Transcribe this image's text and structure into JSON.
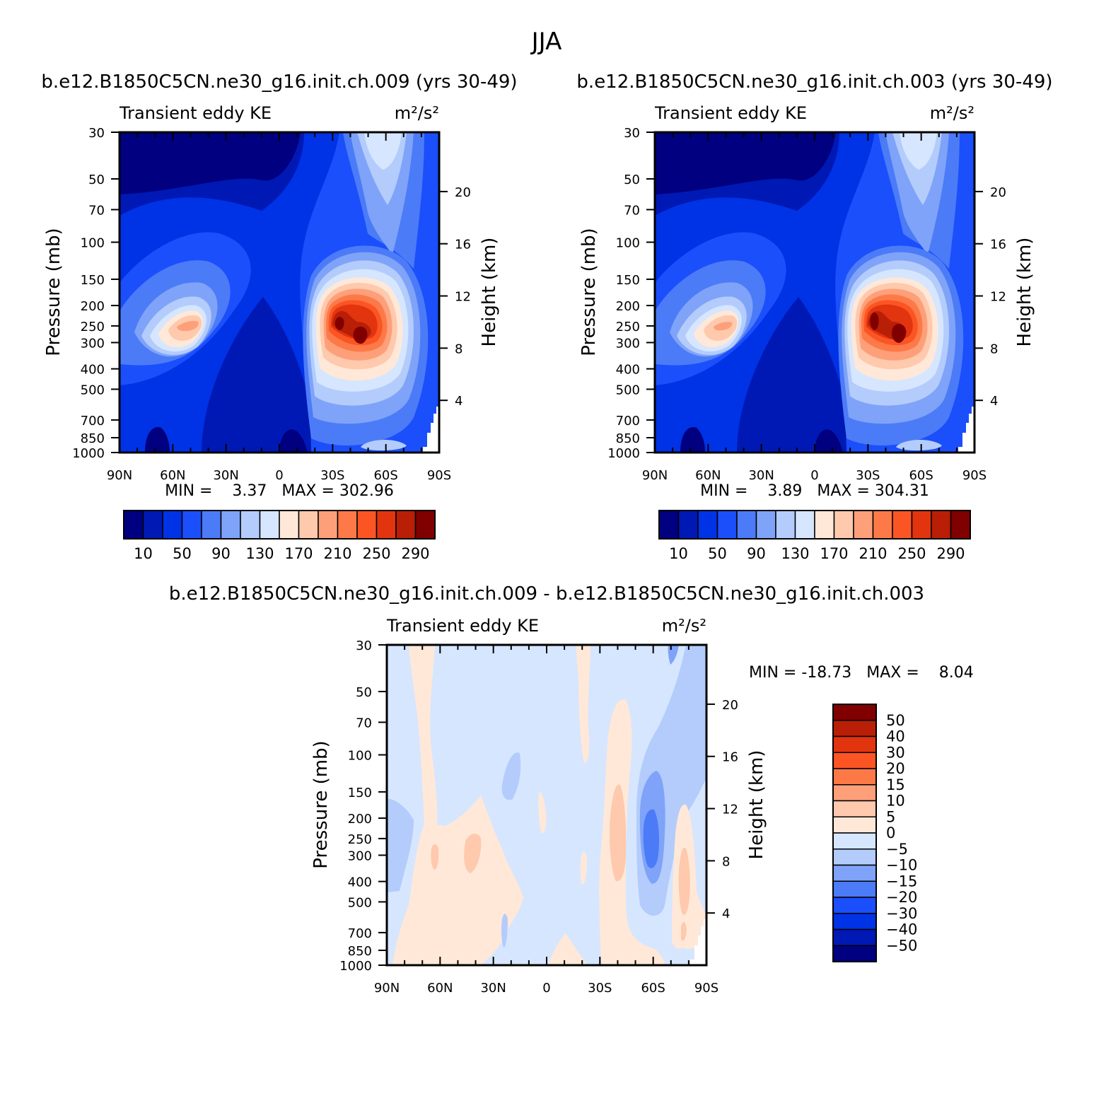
{
  "figure": {
    "title": "JJA"
  },
  "colors": {
    "ke_fill": [
      "#000080",
      "#0019b4",
      "#0032e6",
      "#1b4ffc",
      "#4c7bf8",
      "#7fa3f8",
      "#b3ccfc",
      "#d6e6ff",
      "#ffe8d8",
      "#fec9ad",
      "#fda07a",
      "#fd7a48",
      "#fb5524",
      "#e2340e",
      "#b81f06",
      "#800000"
    ],
    "diff_fill": [
      "#000080",
      "#0019b4",
      "#0032e6",
      "#1b4ffc",
      "#4c7bf8",
      "#7fa3f8",
      "#b3ccfc",
      "#d6e6ff",
      "#ffe8d8",
      "#fec9ad",
      "#fda07a",
      "#fd7a48",
      "#fb5524",
      "#e2340e",
      "#b81f06",
      "#800000"
    ]
  },
  "chart_data": [
    {
      "type": "heatmap",
      "title": "b.e12.B1850C5CN.ne30_g16.init.ch.009 (yrs 30-49)",
      "left_label": "Transient eddy KE",
      "units": "m²/s²",
      "ylabel": "Pressure (mb)",
      "y2label": "Height (km)",
      "x_ticks": [
        "90N",
        "60N",
        "30N",
        "0",
        "30S",
        "60S",
        "90S"
      ],
      "y_ticks": [
        30,
        50,
        70,
        100,
        150,
        200,
        250,
        300,
        400,
        500,
        700,
        850,
        1000
      ],
      "y2_ticks": [
        20,
        16,
        12,
        8,
        4
      ],
      "stats": "MIN =    3.37   MAX = 302.96",
      "colorbar_labels": [
        "10",
        "50",
        "90",
        "130",
        "170",
        "210",
        "250",
        "290"
      ],
      "ylim": [
        1000,
        30
      ],
      "xlim": [
        "90N",
        "90S"
      ],
      "features": [
        {
          "lat": 48,
          "p": 250,
          "value": 190
        },
        {
          "lat": -45,
          "p": 280,
          "value": 302.96
        },
        {
          "lat": -25,
          "p": 260,
          "value": 270
        },
        {
          "lat": -55,
          "p": 30,
          "value": 150
        }
      ]
    },
    {
      "type": "heatmap",
      "title": "b.e12.B1850C5CN.ne30_g16.init.ch.003 (yrs 30-49)",
      "left_label": "Transient eddy KE",
      "units": "m²/s²",
      "ylabel": "Pressure (mb)",
      "y2label": "Height (km)",
      "x_ticks": [
        "90N",
        "60N",
        "30N",
        "0",
        "30S",
        "60S",
        "90S"
      ],
      "y_ticks": [
        30,
        50,
        70,
        100,
        150,
        200,
        250,
        300,
        400,
        500,
        700,
        850,
        1000
      ],
      "y2_ticks": [
        20,
        16,
        12,
        8,
        4
      ],
      "stats": "MIN =    3.89   MAX = 304.31",
      "colorbar_labels": [
        "10",
        "50",
        "90",
        "130",
        "170",
        "210",
        "250",
        "290"
      ],
      "ylim": [
        1000,
        30
      ],
      "xlim": [
        "90N",
        "90S"
      ],
      "features": [
        {
          "lat": 48,
          "p": 250,
          "value": 185
        },
        {
          "lat": -45,
          "p": 280,
          "value": 304.31
        },
        {
          "lat": -27,
          "p": 250,
          "value": 285
        },
        {
          "lat": -55,
          "p": 30,
          "value": 150
        }
      ]
    },
    {
      "type": "heatmap",
      "title": "b.e12.B1850C5CN.ne30_g16.init.ch.009 - b.e12.B1850C5CN.ne30_g16.init.ch.003",
      "left_label": "Transient eddy KE",
      "units": "m²/s²",
      "ylabel": "Pressure (mb)",
      "y2label": "Height (km)",
      "x_ticks": [
        "90N",
        "60N",
        "30N",
        "0",
        "30S",
        "60S",
        "90S"
      ],
      "y_ticks": [
        30,
        50,
        70,
        100,
        150,
        200,
        250,
        300,
        400,
        500,
        700,
        850,
        1000
      ],
      "y2_ticks": [
        20,
        16,
        12,
        8,
        4
      ],
      "stats": "MIN = -18.73   MAX =    8.04",
      "colorbar_labels": [
        "50",
        "40",
        "30",
        "20",
        "15",
        "10",
        "5",
        "0",
        "-5",
        "-10",
        "-15",
        "-20",
        "-30",
        "-40",
        "-50"
      ],
      "ylim": [
        1000,
        30
      ],
      "xlim": [
        "90N",
        "90S"
      ]
    }
  ]
}
